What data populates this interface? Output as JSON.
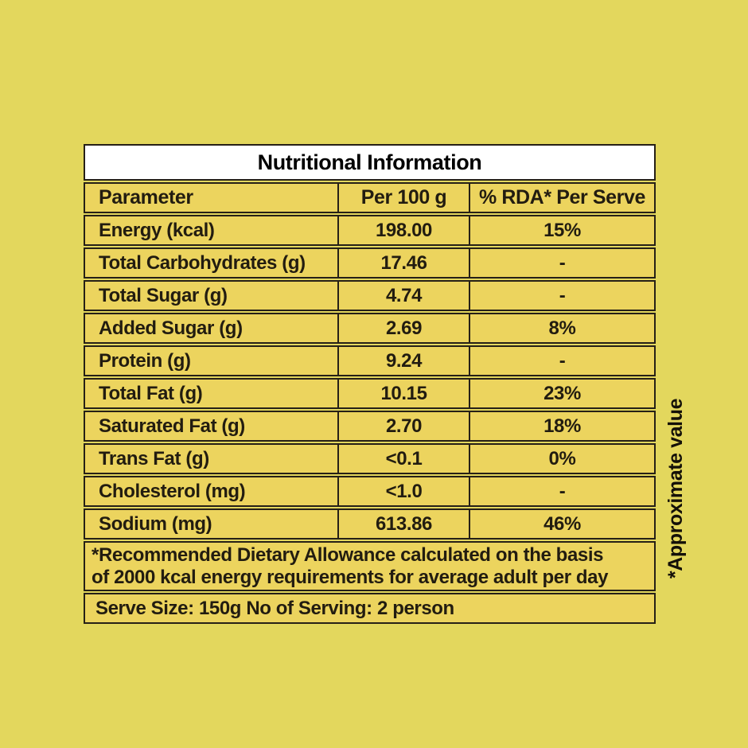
{
  "colors": {
    "bg": "#e3d75d",
    "cell": "#ecd45e",
    "line": "#262017",
    "ink": "#221c10",
    "title-bg": "#ffffff"
  },
  "table": {
    "title": "Nutritional Information",
    "columns": [
      "Parameter",
      "Per 100 g",
      "% RDA* Per Serve"
    ],
    "rows": [
      {
        "parameter": "Energy (kcal)",
        "per_100g": "198.00",
        "rda": "15%"
      },
      {
        "parameter": "Total Carbohydrates (g)",
        "per_100g": "17.46",
        "rda": "-"
      },
      {
        "parameter": "Total Sugar (g)",
        "per_100g": "4.74",
        "rda": "-"
      },
      {
        "parameter": "Added Sugar (g)",
        "per_100g": "2.69",
        "rda": "8%"
      },
      {
        "parameter": "Protein (g)",
        "per_100g": "9.24",
        "rda": "-"
      },
      {
        "parameter": "Total Fat (g)",
        "per_100g": "10.15",
        "rda": "23%"
      },
      {
        "parameter": "Saturated Fat (g)",
        "per_100g": "2.70",
        "rda": "18%"
      },
      {
        "parameter": "Trans Fat (g)",
        "per_100g": "<0.1",
        "rda": "0%"
      },
      {
        "parameter": "Cholesterol (mg)",
        "per_100g": "<1.0",
        "rda": "-"
      },
      {
        "parameter": "Sodium (mg)",
        "per_100g": "613.86",
        "rda": "46%"
      }
    ],
    "rda_footnote": "*Recommended Dietary Allowance calculated on the basis\nof 2000 kcal energy requirements for average  adult per day",
    "serving_info": "Serve Size: 150g No of Serving: 2 person",
    "side_note": "*Approximate value"
  }
}
